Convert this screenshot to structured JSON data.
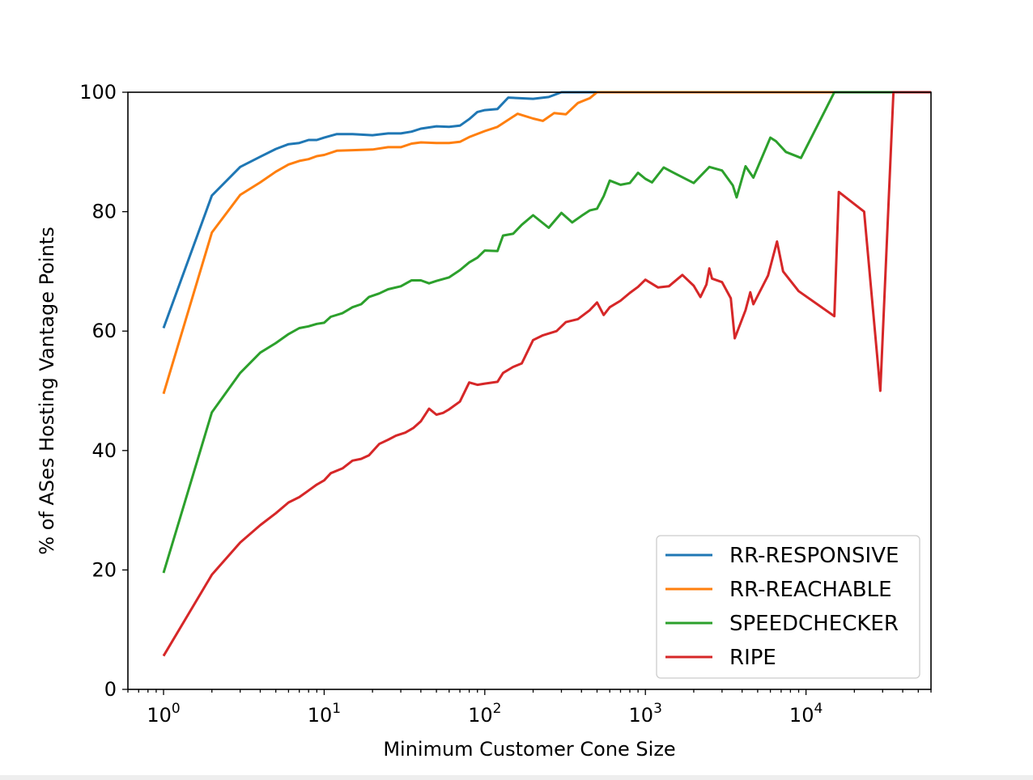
{
  "chart_data": {
    "type": "line",
    "title": "",
    "xlabel": "Minimum Customer Cone Size",
    "ylabel": "% of ASes Hosting Vantage Points",
    "xscale": "log",
    "xlim": [
      0.6,
      60000
    ],
    "ylim": [
      0,
      100
    ],
    "x_ticks": [
      {
        "value": 1,
        "base": "10",
        "exp": "0"
      },
      {
        "value": 10,
        "base": "10",
        "exp": "1"
      },
      {
        "value": 100,
        "base": "10",
        "exp": "2"
      },
      {
        "value": 1000,
        "base": "10",
        "exp": "3"
      },
      {
        "value": 10000,
        "base": "10",
        "exp": "4"
      }
    ],
    "y_ticks": [
      "0",
      "20",
      "40",
      "60",
      "80",
      "100"
    ],
    "grid": false,
    "legend_position": "bottom-right",
    "series": [
      {
        "name": "RR-RESPONSIVE",
        "color": "#1f77b4",
        "points": [
          [
            1,
            60.5
          ],
          [
            2,
            82.7
          ],
          [
            3,
            87.5
          ],
          [
            4,
            89.2
          ],
          [
            5,
            90.5
          ],
          [
            6,
            91.3
          ],
          [
            7,
            91.5
          ],
          [
            8,
            92
          ],
          [
            9,
            92
          ],
          [
            10,
            92.4
          ],
          [
            12,
            93
          ],
          [
            15,
            93
          ],
          [
            20,
            92.8
          ],
          [
            25,
            93.1
          ],
          [
            30,
            93.1
          ],
          [
            35,
            93.4
          ],
          [
            40,
            93.9
          ],
          [
            50,
            94.3
          ],
          [
            60,
            94.2
          ],
          [
            70,
            94.4
          ],
          [
            80,
            95.5
          ],
          [
            90,
            96.7
          ],
          [
            100,
            97
          ],
          [
            120,
            97.2
          ],
          [
            140,
            99.1
          ],
          [
            200,
            98.9
          ],
          [
            250,
            99.2
          ],
          [
            300,
            100
          ],
          [
            60000,
            100
          ]
        ]
      },
      {
        "name": "RR-REACHABLE",
        "color": "#ff7f0e",
        "points": [
          [
            1,
            49.5
          ],
          [
            2,
            76.5
          ],
          [
            3,
            82.8
          ],
          [
            4,
            84.9
          ],
          [
            5,
            86.7
          ],
          [
            6,
            87.9
          ],
          [
            7,
            88.5
          ],
          [
            8,
            88.8
          ],
          [
            9,
            89.3
          ],
          [
            10,
            89.5
          ],
          [
            12,
            90.2
          ],
          [
            15,
            90.3
          ],
          [
            20,
            90.4
          ],
          [
            25,
            90.8
          ],
          [
            30,
            90.8
          ],
          [
            35,
            91.4
          ],
          [
            40,
            91.6
          ],
          [
            50,
            91.5
          ],
          [
            60,
            91.5
          ],
          [
            70,
            91.7
          ],
          [
            80,
            92.5
          ],
          [
            100,
            93.5
          ],
          [
            120,
            94.2
          ],
          [
            160,
            96.4
          ],
          [
            200,
            95.6
          ],
          [
            230,
            95.2
          ],
          [
            270,
            96.5
          ],
          [
            320,
            96.3
          ],
          [
            380,
            98.2
          ],
          [
            450,
            99
          ],
          [
            500,
            100
          ],
          [
            60000,
            100
          ]
        ]
      },
      {
        "name": "SPEEDCHECKER",
        "color": "#2ca02c",
        "points": [
          [
            1,
            19.5
          ],
          [
            2,
            46.4
          ],
          [
            3,
            53
          ],
          [
            4,
            56.4
          ],
          [
            5,
            58
          ],
          [
            6,
            59.5
          ],
          [
            7,
            60.5
          ],
          [
            8,
            60.8
          ],
          [
            9,
            61.2
          ],
          [
            10,
            61.4
          ],
          [
            11,
            62.4
          ],
          [
            13,
            63
          ],
          [
            15,
            64
          ],
          [
            17,
            64.5
          ],
          [
            19,
            65.7
          ],
          [
            22,
            66.3
          ],
          [
            25,
            67
          ],
          [
            30,
            67.5
          ],
          [
            35,
            68.5
          ],
          [
            40,
            68.5
          ],
          [
            45,
            68
          ],
          [
            50,
            68.4
          ],
          [
            60,
            69
          ],
          [
            70,
            70.2
          ],
          [
            80,
            71.5
          ],
          [
            90,
            72.3
          ],
          [
            100,
            73.5
          ],
          [
            120,
            73.4
          ],
          [
            130,
            76
          ],
          [
            150,
            76.3
          ],
          [
            170,
            77.8
          ],
          [
            200,
            79.4
          ],
          [
            250,
            77.3
          ],
          [
            300,
            79.8
          ],
          [
            350,
            78.2
          ],
          [
            400,
            79.3
          ],
          [
            450,
            80.2
          ],
          [
            500,
            80.5
          ],
          [
            550,
            82.6
          ],
          [
            600,
            85.2
          ],
          [
            700,
            84.5
          ],
          [
            800,
            84.8
          ],
          [
            900,
            86.5
          ],
          [
            1000,
            85.5
          ],
          [
            1100,
            84.9
          ],
          [
            1300,
            87.4
          ],
          [
            1500,
            86.5
          ],
          [
            2000,
            84.8
          ],
          [
            2500,
            87.5
          ],
          [
            3000,
            86.9
          ],
          [
            3500,
            84.4
          ],
          [
            3700,
            82.4
          ],
          [
            4200,
            87.6
          ],
          [
            4700,
            85.7
          ],
          [
            6000,
            92.4
          ],
          [
            6500,
            91.8
          ],
          [
            7500,
            90
          ],
          [
            9300,
            89
          ],
          [
            15000,
            100
          ],
          [
            60000,
            100
          ]
        ]
      },
      {
        "name": "RIPE",
        "color": "#d62728",
        "points": [
          [
            1,
            5.6
          ],
          [
            2,
            19.2
          ],
          [
            3,
            24.6
          ],
          [
            4,
            27.5
          ],
          [
            5,
            29.5
          ],
          [
            6,
            31.3
          ],
          [
            7,
            32.2
          ],
          [
            8,
            33.3
          ],
          [
            9,
            34.3
          ],
          [
            10,
            35
          ],
          [
            11,
            36.2
          ],
          [
            13,
            37
          ],
          [
            15,
            38.3
          ],
          [
            17,
            38.6
          ],
          [
            19,
            39.2
          ],
          [
            22,
            41.1
          ],
          [
            25,
            41.8
          ],
          [
            28,
            42.5
          ],
          [
            32,
            43
          ],
          [
            36,
            43.8
          ],
          [
            40,
            44.9
          ],
          [
            45,
            47
          ],
          [
            50,
            46
          ],
          [
            55,
            46.3
          ],
          [
            60,
            46.9
          ],
          [
            70,
            48.2
          ],
          [
            80,
            51.4
          ],
          [
            90,
            51
          ],
          [
            100,
            51.2
          ],
          [
            120,
            51.5
          ],
          [
            130,
            53
          ],
          [
            150,
            54
          ],
          [
            170,
            54.6
          ],
          [
            200,
            58.5
          ],
          [
            230,
            59.3
          ],
          [
            280,
            60
          ],
          [
            320,
            61.5
          ],
          [
            380,
            62
          ],
          [
            450,
            63.5
          ],
          [
            500,
            64.8
          ],
          [
            550,
            62.7
          ],
          [
            600,
            64
          ],
          [
            700,
            65.1
          ],
          [
            800,
            66.4
          ],
          [
            900,
            67.4
          ],
          [
            1000,
            68.6
          ],
          [
            1200,
            67.3
          ],
          [
            1400,
            67.5
          ],
          [
            1700,
            69.4
          ],
          [
            2000,
            67.6
          ],
          [
            2200,
            65.7
          ],
          [
            2400,
            67.8
          ],
          [
            2500,
            70.5
          ],
          [
            2600,
            68.8
          ],
          [
            3000,
            68.2
          ],
          [
            3400,
            65.5
          ],
          [
            3600,
            58.8
          ],
          [
            4200,
            63.5
          ],
          [
            4500,
            66.5
          ],
          [
            4700,
            64.5
          ],
          [
            5800,
            69.3
          ],
          [
            6600,
            75
          ],
          [
            7200,
            70
          ],
          [
            9000,
            66.7
          ],
          [
            15000,
            62.5
          ],
          [
            16000,
            83.3
          ],
          [
            23000,
            80
          ],
          [
            29000,
            50
          ],
          [
            35000,
            100
          ],
          [
            60000,
            100
          ]
        ]
      }
    ]
  }
}
